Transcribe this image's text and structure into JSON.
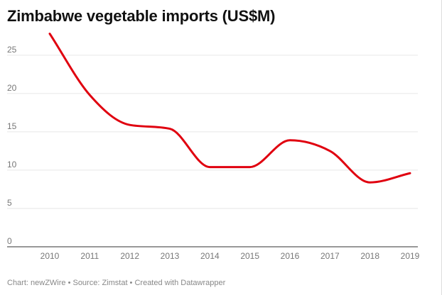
{
  "title": "Zimbabwe vegetable imports (US$M)",
  "footer": "Chart: newZWire • Source: Zimstat • Created with Datawrapper",
  "colors": {
    "line": "#e0000f",
    "grid": "#e6e6e6",
    "axis": "#333333",
    "tick_text": "#777777"
  },
  "chart_data": {
    "type": "line",
    "title": "Zimbabwe vegetable imports (US$M)",
    "xlabel": "",
    "ylabel": "",
    "x": [
      2010,
      2011,
      2012,
      2013,
      2014,
      2015,
      2016,
      2017,
      2018,
      2019
    ],
    "x_tick_labels": [
      "2010",
      "2011",
      "2012",
      "2013",
      "2014",
      "2015",
      "2016",
      "2017",
      "2018",
      "2019"
    ],
    "y_ticks": [
      0,
      5,
      10,
      15,
      20,
      25
    ],
    "y_tick_labels": [
      "0",
      "5",
      "10",
      "15",
      "20",
      "25"
    ],
    "ylim": [
      0,
      28.5
    ],
    "grid": true,
    "series": [
      {
        "values": [
          27.8,
          19.8,
          15.9,
          15.4,
          10.4,
          10.4,
          13.9,
          12.5,
          8.4,
          9.6
        ]
      }
    ]
  }
}
